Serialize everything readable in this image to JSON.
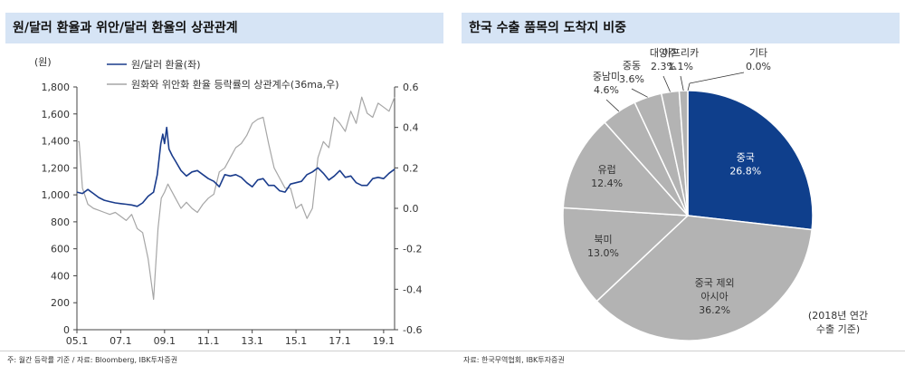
{
  "left_panel": {
    "title": "원/달러 환율과 위안/달러 환율의 상관관계",
    "footnote": "주: 월간 등락률 기준 / 자료: Bloomberg, IBK투자증권"
  },
  "right_panel": {
    "title": "한국 수출 품목의 도착지 비중",
    "footnote": "자료: 한국무역협회, IBK투자증권",
    "annotation_line1": "(2018년 연간",
    "annotation_line2": "수출 기준)"
  },
  "chart_data": [
    {
      "type": "line",
      "y_unit_label": "(원)",
      "x_tick_labels": [
        "05.1",
        "07.1",
        "09.1",
        "11.1",
        "13.1",
        "15.1",
        "17.1",
        "19.1"
      ],
      "x_range": [
        2005.0,
        2019.5
      ],
      "y_left_ticks": [
        "0",
        "200",
        "400",
        "600",
        "800",
        "1,000",
        "1,200",
        "1,400",
        "1,600",
        "1,800"
      ],
      "ylim_left": [
        0,
        1800
      ],
      "y_right_ticks": [
        "-0.6",
        "-0.4",
        "-0.2",
        "0.0",
        "0.2",
        "0.4",
        "0.6"
      ],
      "ylim_right": [
        -0.6,
        0.6
      ],
      "grid": false,
      "legend_position": "top-left",
      "series": [
        {
          "name": "원/달러 환율(좌)",
          "axis": "left",
          "color": "#1a3c8c",
          "x": [
            2005.0,
            2005.25,
            2005.5,
            2005.75,
            2006.0,
            2006.25,
            2006.5,
            2006.75,
            2007.0,
            2007.25,
            2007.5,
            2007.75,
            2008.0,
            2008.25,
            2008.5,
            2008.67,
            2008.83,
            2008.92,
            2009.0,
            2009.1,
            2009.2,
            2009.35,
            2009.5,
            2009.75,
            2010.0,
            2010.25,
            2010.5,
            2010.75,
            2011.0,
            2011.25,
            2011.5,
            2011.75,
            2012.0,
            2012.25,
            2012.5,
            2012.75,
            2013.0,
            2013.25,
            2013.5,
            2013.75,
            2014.0,
            2014.25,
            2014.5,
            2014.75,
            2015.0,
            2015.25,
            2015.5,
            2015.75,
            2016.0,
            2016.25,
            2016.5,
            2016.75,
            2017.0,
            2017.25,
            2017.5,
            2017.75,
            2018.0,
            2018.25,
            2018.5,
            2018.75,
            2019.0,
            2019.25,
            2019.5
          ],
          "values": [
            1020,
            1010,
            1040,
            1010,
            980,
            960,
            950,
            940,
            935,
            930,
            925,
            915,
            940,
            990,
            1020,
            1150,
            1380,
            1450,
            1380,
            1500,
            1340,
            1290,
            1250,
            1180,
            1140,
            1170,
            1180,
            1150,
            1120,
            1100,
            1060,
            1150,
            1140,
            1150,
            1130,
            1090,
            1060,
            1110,
            1120,
            1070,
            1070,
            1030,
            1020,
            1080,
            1090,
            1100,
            1150,
            1170,
            1200,
            1160,
            1110,
            1140,
            1180,
            1130,
            1140,
            1090,
            1070,
            1070,
            1120,
            1130,
            1120,
            1160,
            1190
          ]
        },
        {
          "name": "원화와 위안화 환율 등락률의 상관계수(36ma,우)",
          "axis": "right",
          "color": "#a6a6a6",
          "x": [
            2005.0,
            2005.1,
            2005.25,
            2005.5,
            2005.75,
            2006.0,
            2006.25,
            2006.5,
            2006.75,
            2007.0,
            2007.25,
            2007.5,
            2007.75,
            2008.0,
            2008.25,
            2008.5,
            2008.7,
            2008.85,
            2009.0,
            2009.15,
            2009.25,
            2009.5,
            2009.75,
            2010.0,
            2010.25,
            2010.5,
            2010.75,
            2011.0,
            2011.25,
            2011.5,
            2011.75,
            2012.0,
            2012.25,
            2012.5,
            2012.75,
            2013.0,
            2013.25,
            2013.5,
            2013.75,
            2014.0,
            2014.25,
            2014.5,
            2014.75,
            2015.0,
            2015.25,
            2015.5,
            2015.75,
            2016.0,
            2016.25,
            2016.5,
            2016.75,
            2017.0,
            2017.25,
            2017.5,
            2017.75,
            2018.0,
            2018.25,
            2018.5,
            2018.75,
            2019.0,
            2019.25,
            2019.5
          ],
          "values": [
            0.33,
            0.33,
            0.1,
            0.02,
            0.0,
            -0.01,
            -0.02,
            -0.03,
            -0.02,
            -0.04,
            -0.06,
            -0.03,
            -0.1,
            -0.12,
            -0.25,
            -0.45,
            -0.1,
            0.05,
            0.08,
            0.12,
            0.1,
            0.05,
            0.0,
            0.03,
            0.0,
            -0.02,
            0.02,
            0.05,
            0.07,
            0.18,
            0.2,
            0.25,
            0.3,
            0.32,
            0.36,
            0.42,
            0.44,
            0.45,
            0.32,
            0.2,
            0.15,
            0.1,
            0.1,
            0.0,
            0.02,
            -0.05,
            0.0,
            0.25,
            0.33,
            0.3,
            0.45,
            0.42,
            0.38,
            0.48,
            0.42,
            0.55,
            0.47,
            0.45,
            0.52,
            0.5,
            0.48,
            0.55
          ]
        }
      ]
    },
    {
      "type": "pie",
      "start_angle_deg": 0,
      "direction": "clockwise",
      "slices": [
        {
          "label": "중국",
          "value": 26.8,
          "value_label": "26.8%",
          "color": "#0f3f8c"
        },
        {
          "label": "중국 제외 아시아",
          "label_lines": [
            "중국 제외",
            "아시아"
          ],
          "value": 36.2,
          "value_label": "36.2%",
          "color": "#b3b3b3"
        },
        {
          "label": "북미",
          "value": 13.0,
          "value_label": "13.0%",
          "color": "#b3b3b3"
        },
        {
          "label": "유럽",
          "value": 12.4,
          "value_label": "12.4%",
          "color": "#b3b3b3"
        },
        {
          "label": "중남미",
          "value": 4.6,
          "value_label": "4.6%",
          "color": "#b3b3b3"
        },
        {
          "label": "중동",
          "value": 3.6,
          "value_label": "3.6%",
          "color": "#b3b3b3"
        },
        {
          "label": "대양주",
          "value": 2.3,
          "value_label": "2.3%",
          "color": "#b3b3b3"
        },
        {
          "label": "아프리카",
          "value": 1.1,
          "value_label": "1.1%",
          "color": "#b3b3b3"
        },
        {
          "label": "기타",
          "value": 0.0,
          "value_label": "0.0%",
          "color": "#b3b3b3"
        }
      ]
    }
  ]
}
